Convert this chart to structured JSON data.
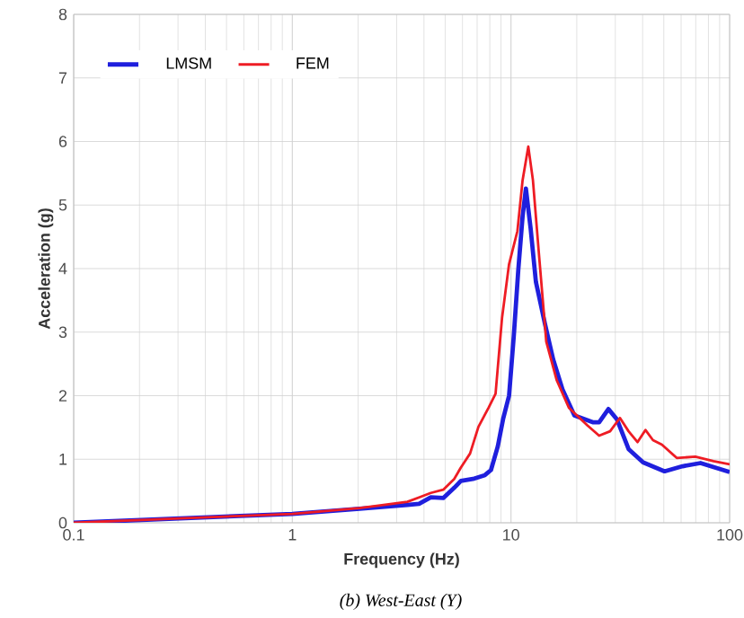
{
  "chart_data": {
    "type": "line",
    "xlabel": "Frequency (Hz)",
    "ylabel": "Acceleration (g)",
    "annotations": [
      "(b) West-East (Y)"
    ],
    "log": "x",
    "grid": true,
    "legend": "top left",
    "line_style": "solid",
    "marker": "none",
    "xlim": [
      0.1,
      100
    ],
    "xticks": [
      0.1,
      1,
      10,
      100
    ],
    "ylim": [
      0,
      8
    ],
    "yticks": [
      0,
      1,
      2,
      3,
      4,
      5,
      6,
      7,
      8
    ],
    "series": [
      {
        "name": "LMSM",
        "color": "#1f1fdd",
        "x": [
          0.1,
          0.306,
          1.0,
          2.03,
          3.36,
          3.8,
          4.3,
          4.9,
          5.5,
          5.9,
          6.7,
          7.6,
          8.1,
          8.7,
          9.2,
          9.8,
          10.3,
          10.8,
          11.3,
          11.7,
          12.3,
          13.0,
          14.3,
          15.6,
          17.2,
          19.5,
          23.8,
          25.3,
          27.9,
          30.5,
          34.5,
          40.2,
          50.4,
          60.9,
          73.6,
          100
        ],
        "values": [
          0,
          0.07,
          0.14,
          0.22,
          0.28,
          0.3,
          0.4,
          0.39,
          0.55,
          0.66,
          0.69,
          0.75,
          0.83,
          1.2,
          1.63,
          2.0,
          2.94,
          3.98,
          4.82,
          5.26,
          4.63,
          3.79,
          3.13,
          2.57,
          2.1,
          1.69,
          1.58,
          1.58,
          1.79,
          1.63,
          1.16,
          0.95,
          0.81,
          0.89,
          0.94,
          0.8
        ]
      },
      {
        "name": "FEM",
        "color": "#ee1c24",
        "x": [
          0.1,
          0.306,
          1.0,
          2.03,
          3.36,
          3.8,
          4.3,
          4.9,
          5.5,
          5.9,
          6.5,
          7.1,
          7.9,
          8.5,
          9.1,
          9.8,
          10.7,
          11.3,
          12.0,
          12.6,
          13.4,
          14.5,
          16.2,
          18.4,
          22.4,
          25.3,
          28.4,
          31.5,
          34.5,
          37.9,
          41.2,
          44.6,
          49.0,
          57.3,
          69.7,
          84.4,
          100
        ],
        "values": [
          0,
          0.07,
          0.14,
          0.23,
          0.33,
          0.4,
          0.47,
          0.52,
          0.69,
          0.87,
          1.09,
          1.51,
          1.81,
          2.03,
          3.22,
          4.07,
          4.59,
          5.39,
          5.92,
          5.39,
          4.26,
          2.85,
          2.24,
          1.81,
          1.53,
          1.37,
          1.44,
          1.65,
          1.44,
          1.27,
          1.46,
          1.3,
          1.23,
          1.02,
          1.04,
          0.97,
          0.92
        ]
      }
    ]
  }
}
